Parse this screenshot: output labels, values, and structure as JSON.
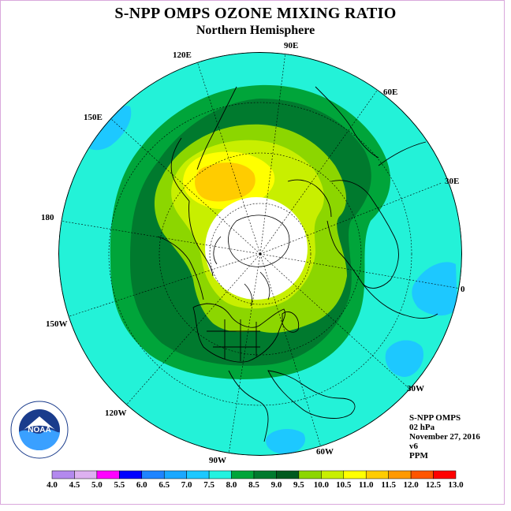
{
  "header": {
    "title": "S-NPP OMPS OZONE MIXING RATIO",
    "subtitle": "Northern Hemisphere"
  },
  "longitude_labels": {
    "lon_90E": "90E",
    "lon_60E": "60E",
    "lon_30E": "30E",
    "lon_0": "0",
    "lon_30W": "30W",
    "lon_60W": "60W",
    "lon_90W": "90W",
    "lon_120W": "120W",
    "lon_150W": "150W",
    "lon_180": "180",
    "lon_150E": "150E",
    "lon_120E": "120E"
  },
  "info": {
    "instrument": "S-NPP OMPS",
    "pressure": "02 hPa",
    "date": "November 27, 2016",
    "version": "v6",
    "units": "PPM"
  },
  "colorbar": {
    "ticks": [
      "4.0",
      "4.5",
      "5.0",
      "5.5",
      "6.0",
      "6.5",
      "7.0",
      "7.5",
      "8.0",
      "8.5",
      "9.0",
      "9.5",
      "10.0",
      "10.5",
      "11.0",
      "11.5",
      "12.0",
      "12.5",
      "13.0"
    ],
    "colors": [
      "#b389ee",
      "#ddb1f0",
      "#ff00ff",
      "#0000ff",
      "#1f84ff",
      "#1aa8ff",
      "#1dc8ff",
      "#23f2e0",
      "#00a53a",
      "#007a2e",
      "#005a1e",
      "#8cd600",
      "#c8ef00",
      "#ffff00",
      "#ffcc00",
      "#ff9900",
      "#ff5500",
      "#ff0000",
      "#8b5a3c"
    ]
  },
  "map_colors": {
    "bg_cyan": "#23f2d8",
    "green_light": "#00a53a",
    "green_dark": "#007a2e",
    "lime": "#8cd600",
    "yellow_green": "#c8ef00",
    "yellow": "#ffff00",
    "orange": "#ffcc00",
    "blue_light": "#1dc8ff"
  }
}
